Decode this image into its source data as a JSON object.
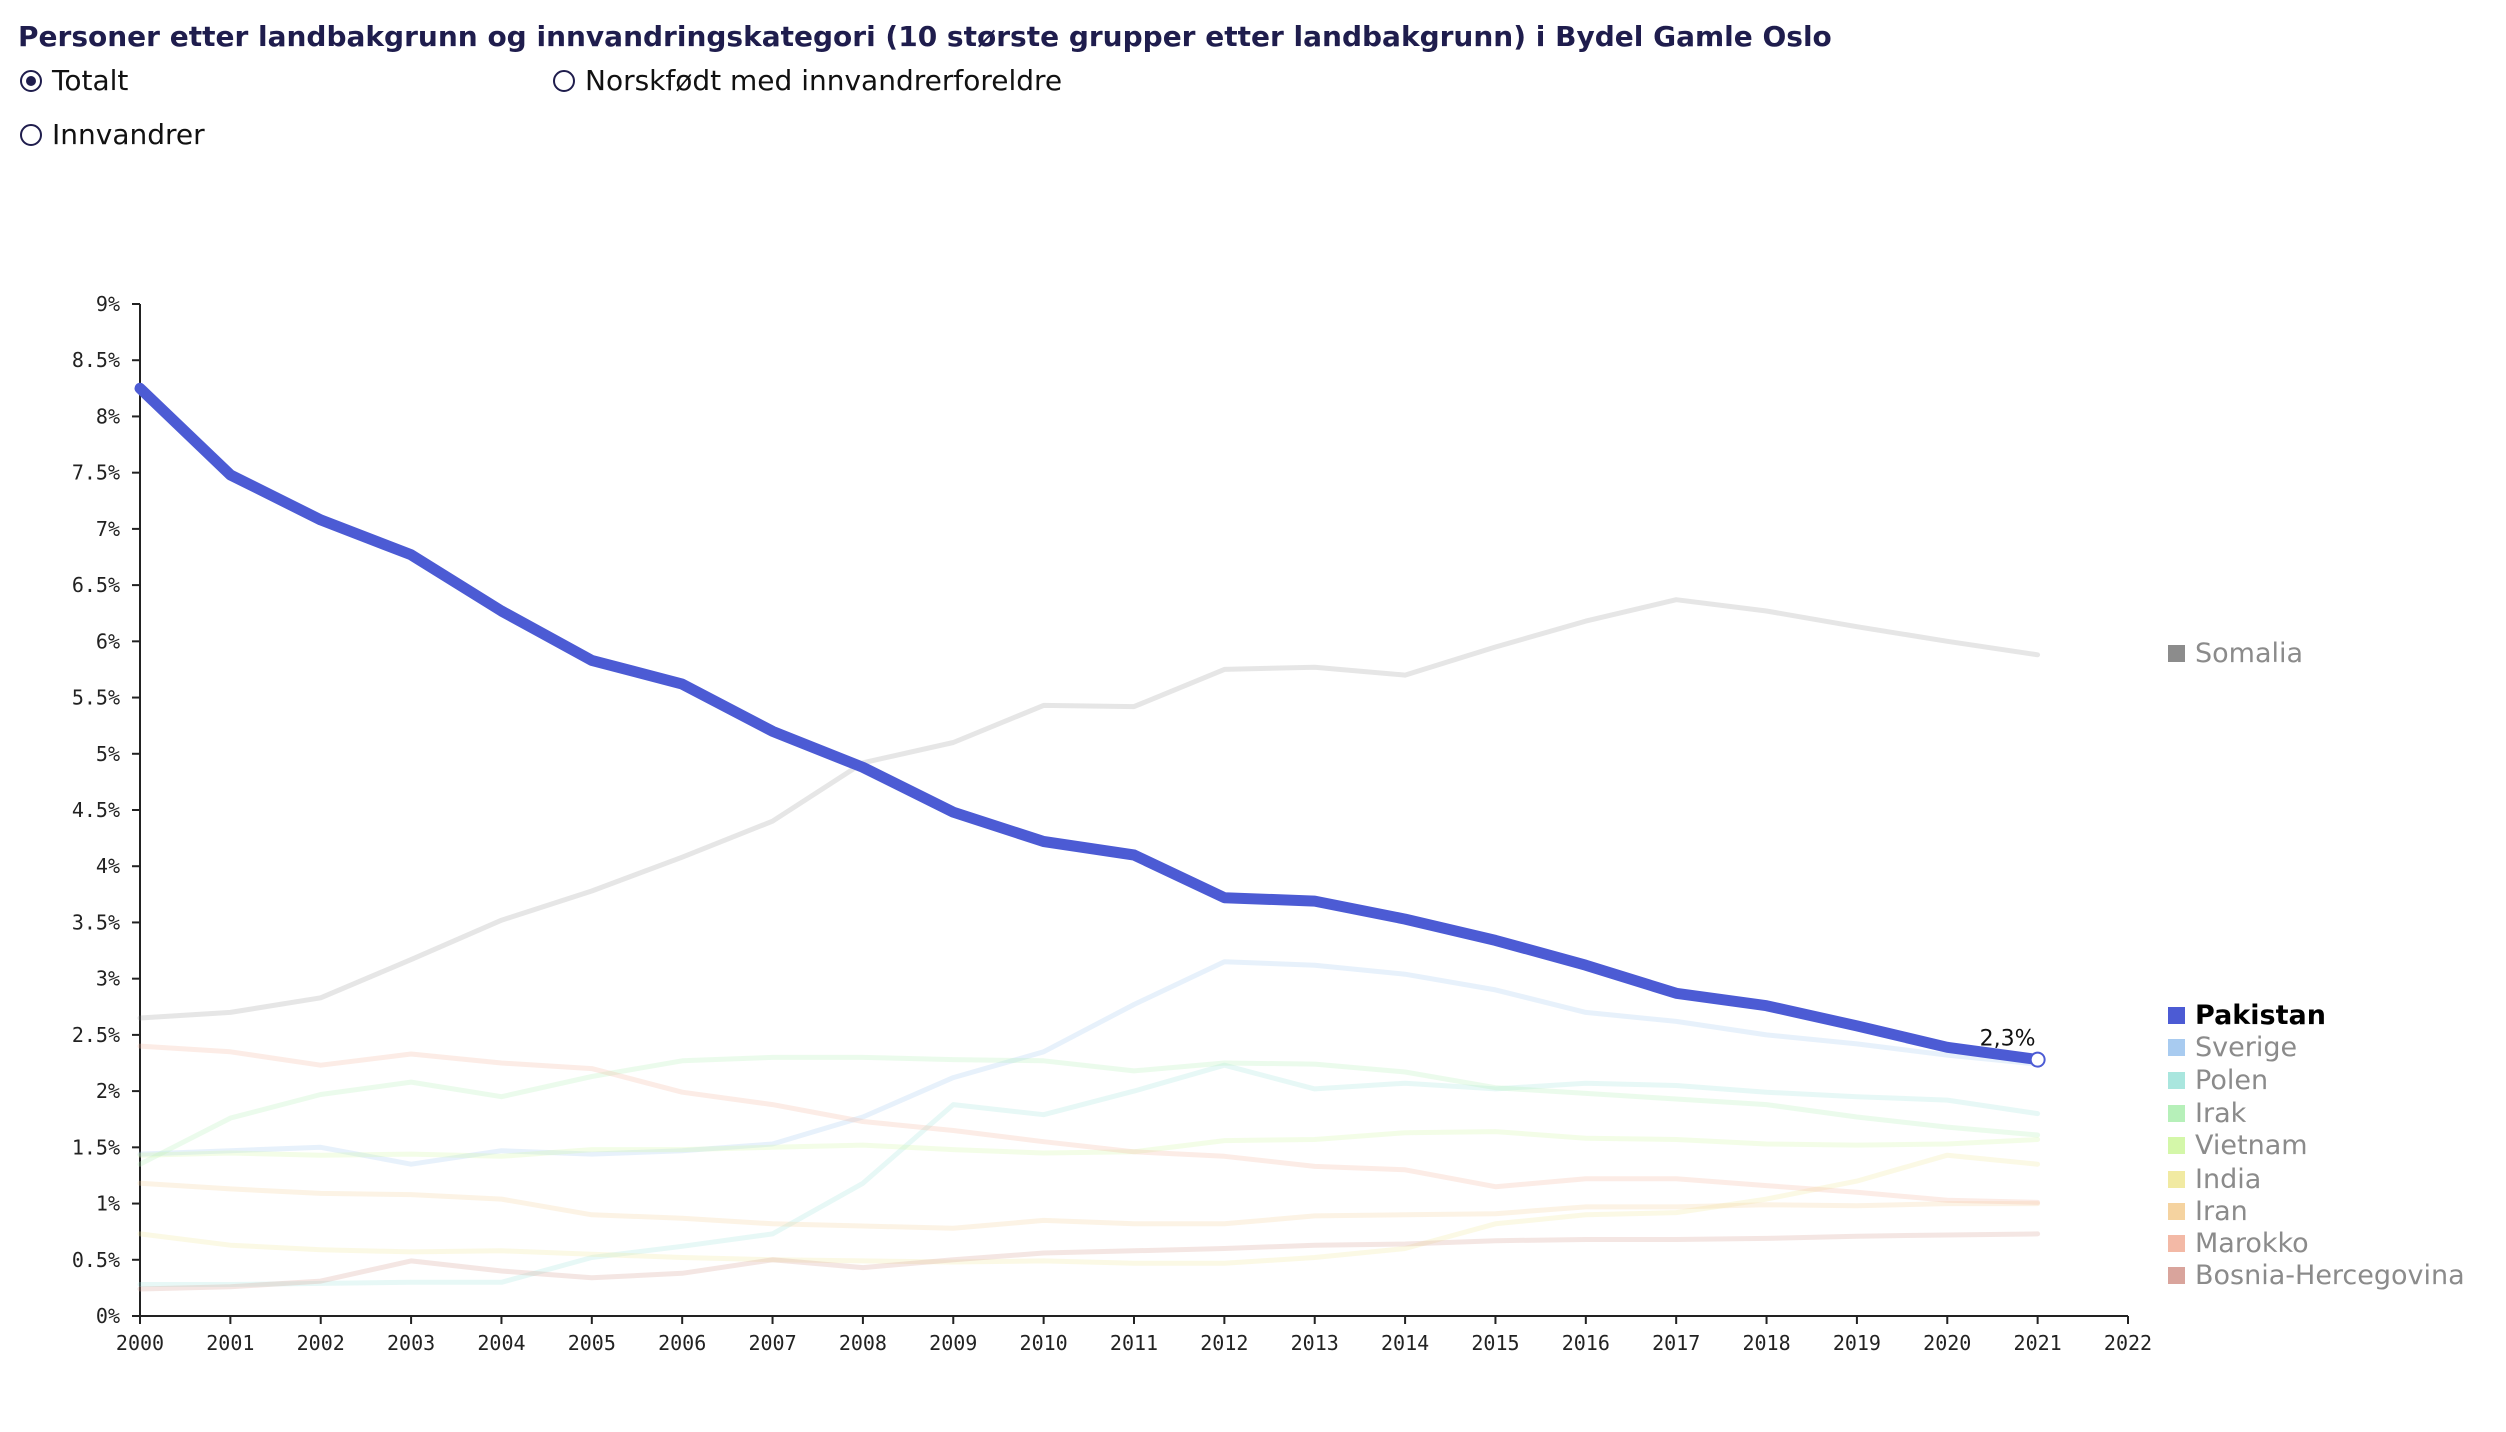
{
  "title": "Personer etter landbakgrunn og innvandringskategori (10 største grupper etter landbakgrunn) i Bydel Gamle Oslo",
  "radios": [
    {
      "label": "Totalt",
      "checked": true
    },
    {
      "label": "Norskfødt med innvandrerforeldre",
      "checked": false
    },
    {
      "label": "Innvandrer",
      "checked": false
    }
  ],
  "chart_data": {
    "type": "line",
    "title": "Personer etter landbakgrunn og innvandringskategori (10 største grupper etter landbakgrunn) i Bydel Gamle Oslo",
    "x": [
      2000,
      2001,
      2002,
      2003,
      2004,
      2005,
      2006,
      2007,
      2008,
      2009,
      2010,
      2011,
      2012,
      2013,
      2014,
      2015,
      2016,
      2017,
      2018,
      2019,
      2020,
      2021
    ],
    "xlim": [
      2000,
      2022
    ],
    "xticks": [
      "2000",
      "2001",
      "2002",
      "2003",
      "2004",
      "2005",
      "2006",
      "2007",
      "2008",
      "2009",
      "2010",
      "2011",
      "2012",
      "2013",
      "2014",
      "2015",
      "2016",
      "2017",
      "2018",
      "2019",
      "2020",
      "2021",
      "2022"
    ],
    "ylim": [
      0,
      9
    ],
    "yticks": [
      "0%",
      "0.5%",
      "1%",
      "1.5%",
      "2%",
      "2.5%",
      "3%",
      "3.5%",
      "4%",
      "4.5%",
      "5%",
      "5.5%",
      "6%",
      "6.5%",
      "7%",
      "7.5%",
      "8%",
      "8.5%",
      "9%"
    ],
    "highlight": "Pakistan",
    "highlight_label": "2,3%",
    "series": [
      {
        "name": "Somalia",
        "color": "#8c8c8c",
        "values": [
          2.65,
          2.7,
          2.83,
          3.17,
          3.52,
          3.78,
          4.08,
          4.4,
          4.92,
          5.1,
          5.43,
          5.42,
          5.75,
          5.77,
          5.7,
          5.95,
          6.18,
          6.37,
          6.27,
          6.13,
          6.0,
          5.88
        ]
      },
      {
        "name": "Pakistan",
        "color": "#4c5bd4",
        "values": [
          8.25,
          7.48,
          7.08,
          6.77,
          6.27,
          5.83,
          5.62,
          5.2,
          4.88,
          4.48,
          4.22,
          4.1,
          3.72,
          3.69,
          3.53,
          3.34,
          3.12,
          2.87,
          2.76,
          2.58,
          2.39,
          2.28
        ]
      },
      {
        "name": "Sverige",
        "color": "#a8cbf0",
        "values": [
          1.44,
          1.47,
          1.5,
          1.35,
          1.47,
          1.44,
          1.47,
          1.53,
          1.77,
          2.12,
          2.35,
          2.77,
          3.15,
          3.12,
          3.04,
          2.9,
          2.7,
          2.62,
          2.5,
          2.42,
          2.32,
          2.24
        ]
      },
      {
        "name": "Polen",
        "color": "#a9e6de",
        "values": [
          0.28,
          0.28,
          0.29,
          0.3,
          0.3,
          0.52,
          0.62,
          0.73,
          1.18,
          1.88,
          1.79,
          2.0,
          2.23,
          2.02,
          2.07,
          2.02,
          2.07,
          2.05,
          1.99,
          1.95,
          1.92,
          1.8
        ]
      },
      {
        "name": "Irak",
        "color": "#b6f0b9",
        "values": [
          1.35,
          1.76,
          1.97,
          2.08,
          1.95,
          2.13,
          2.27,
          2.3,
          2.3,
          2.28,
          2.27,
          2.18,
          2.25,
          2.24,
          2.17,
          2.03,
          1.98,
          1.93,
          1.88,
          1.77,
          1.68,
          1.61
        ]
      },
      {
        "name": "Vietnam",
        "color": "#d4f7a9",
        "values": [
          1.43,
          1.45,
          1.43,
          1.44,
          1.42,
          1.48,
          1.48,
          1.5,
          1.52,
          1.48,
          1.45,
          1.46,
          1.56,
          1.57,
          1.63,
          1.64,
          1.58,
          1.57,
          1.53,
          1.52,
          1.53,
          1.57
        ]
      },
      {
        "name": "India",
        "color": "#f1eaa2",
        "values": [
          0.73,
          0.63,
          0.59,
          0.57,
          0.58,
          0.55,
          0.52,
          0.5,
          0.49,
          0.48,
          0.49,
          0.47,
          0.47,
          0.52,
          0.6,
          0.82,
          0.9,
          0.92,
          1.04,
          1.2,
          1.43,
          1.35
        ]
      },
      {
        "name": "Iran",
        "color": "#f5d3a0",
        "values": [
          1.18,
          1.13,
          1.09,
          1.08,
          1.04,
          0.9,
          0.87,
          0.82,
          0.8,
          0.78,
          0.85,
          0.82,
          0.82,
          0.89,
          0.9,
          0.91,
          0.97,
          0.97,
          0.99,
          0.98,
          1.0,
          1.0
        ]
      },
      {
        "name": "Marokko",
        "color": "#f3b9a6",
        "values": [
          2.4,
          2.35,
          2.23,
          2.33,
          2.25,
          2.2,
          1.99,
          1.88,
          1.73,
          1.65,
          1.55,
          1.46,
          1.42,
          1.33,
          1.3,
          1.15,
          1.22,
          1.22,
          1.16,
          1.1,
          1.03,
          1.01
        ]
      },
      {
        "name": "Bosnia-Hercegovina",
        "color": "#d9a49c",
        "values": [
          0.24,
          0.26,
          0.31,
          0.49,
          0.4,
          0.34,
          0.38,
          0.5,
          0.43,
          0.5,
          0.56,
          0.58,
          0.6,
          0.63,
          0.64,
          0.67,
          0.68,
          0.68,
          0.69,
          0.71,
          0.72,
          0.73
        ]
      }
    ]
  }
}
